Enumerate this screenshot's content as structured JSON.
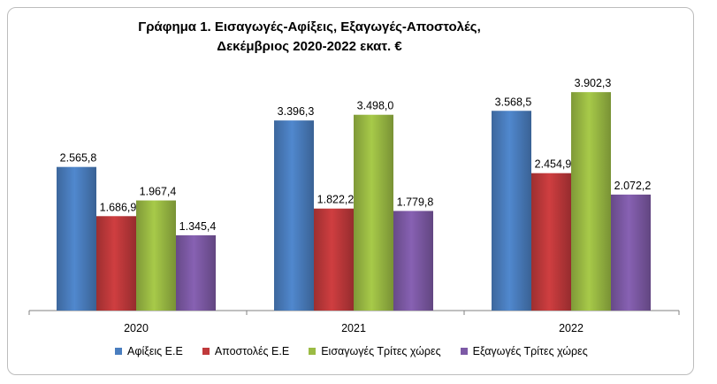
{
  "chart_data": {
    "type": "bar",
    "title": "Γράφημα 1. Εισαγωγές-Αφίξεις, Εξαγωγές-Αποστολές,",
    "subtitle": "Δεκέμβριος 2020-2022 εκατ. €",
    "categories": [
      "2020",
      "2021",
      "2022"
    ],
    "series": [
      {
        "name": "Αφίξεις Ε.Ε",
        "color": "#4a7ebf",
        "values": [
          2565.8,
          3396.3,
          3568.5
        ],
        "labels": [
          "2.565,8",
          "3.396,3",
          "3.568,5"
        ]
      },
      {
        "name": "Αποστολές  Ε.Ε",
        "color": "#c0393b",
        "values": [
          1686.9,
          1822.2,
          2454.9
        ],
        "labels": [
          "1.686,9",
          "1.822,2",
          "2.454,9"
        ]
      },
      {
        "name": "Εισαγωγές Τρίτες χώρες",
        "color": "#9bbb44",
        "values": [
          1967.4,
          3498.0,
          3902.3
        ],
        "labels": [
          "1.967,4",
          "3.498,0",
          "3.902,3"
        ]
      },
      {
        "name": "Εξαγωγές Τρίτες χώρες",
        "color": "#7d5aa6",
        "values": [
          1345.4,
          1779.8,
          2072.2
        ],
        "labels": [
          "1.345,4",
          "1.779,8",
          "2.072,2"
        ]
      }
    ],
    "ylim": [
      0,
      4600
    ],
    "grid": false,
    "legend_position": "bottom"
  }
}
